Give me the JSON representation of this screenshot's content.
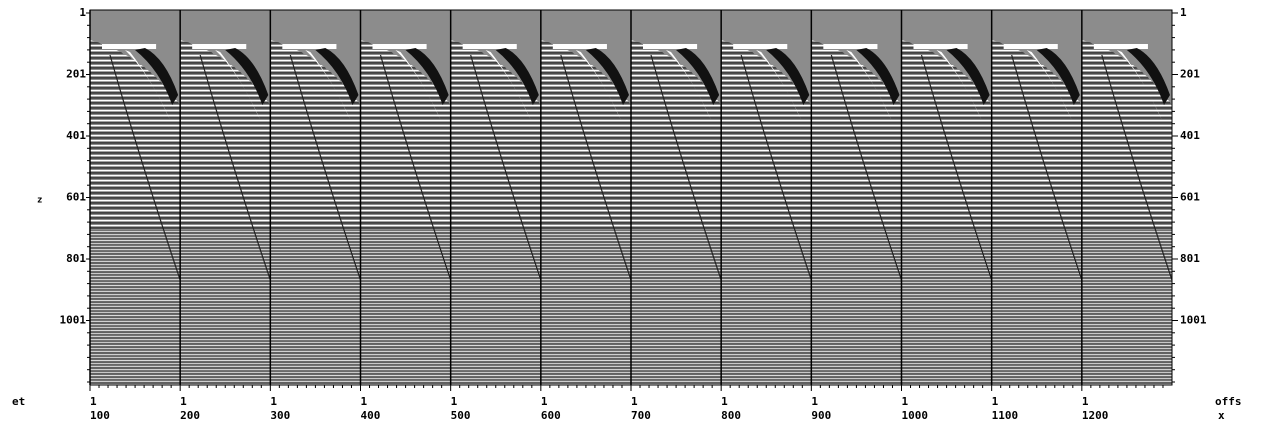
{
  "left_axis": {
    "title": "z",
    "labels": [
      "1",
      "201",
      "401",
      "601",
      "801",
      "1001"
    ]
  },
  "right_axis": {
    "labels": [
      "1",
      "201",
      "401",
      "601",
      "801",
      "1001"
    ]
  },
  "bottom_axis": {
    "left_label": "et",
    "right_label_top": "offs",
    "right_label_bottom": "x",
    "panel_start_labels": [
      "1",
      "1",
      "1",
      "1",
      "1",
      "1",
      "1",
      "1",
      "1",
      "1",
      "1",
      "1"
    ],
    "panel_labels": [
      "100",
      "200",
      "300",
      "400",
      "500",
      "600",
      "700",
      "800",
      "900",
      "1000",
      "1100",
      "1200"
    ]
  }
}
